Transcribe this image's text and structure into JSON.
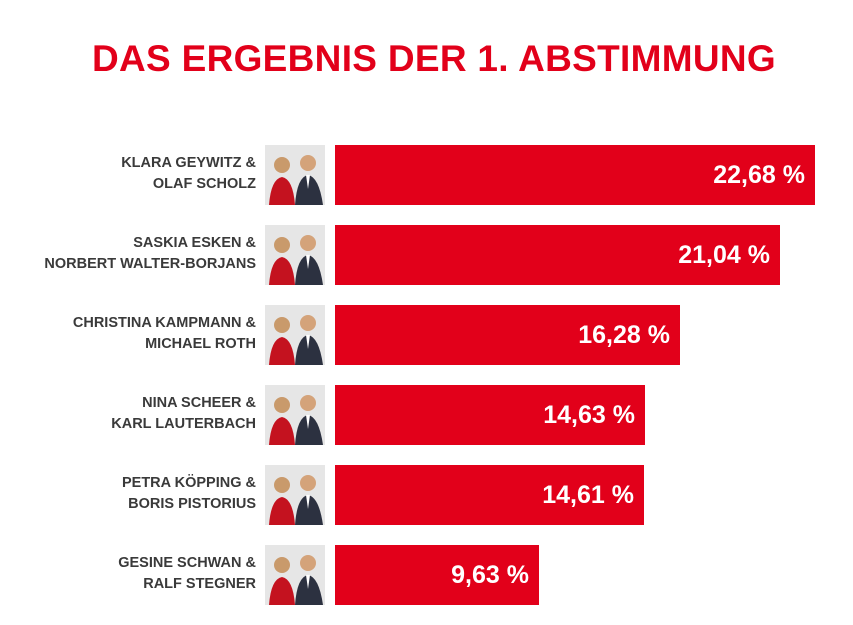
{
  "title": "DAS ERGEBNIS DER 1. ABSTIMMUNG",
  "colors": {
    "accent": "#e2001a",
    "label": "#3a3a3a"
  },
  "chart_data": {
    "type": "bar",
    "orientation": "horizontal",
    "categories": [
      [
        "KLARA GEYWITZ &",
        "OLAF SCHOLZ"
      ],
      [
        "SASKIA ESKEN &",
        "NORBERT WALTER-BORJANS"
      ],
      [
        "CHRISTINA KAMPMANN &",
        "MICHAEL ROTH"
      ],
      [
        "NINA SCHEER &",
        "KARL LAUTERBACH"
      ],
      [
        "PETRA KÖPPING &",
        "BORIS PISTORIUS"
      ],
      [
        "GESINE SCHWAN &",
        "RALF STEGNER"
      ]
    ],
    "values": [
      22.68,
      21.04,
      16.28,
      14.63,
      14.61,
      9.63
    ],
    "value_labels": [
      "22,68 %",
      "21,04 %",
      "16,28 %",
      "14,63 %",
      "14,61 %",
      "9,63 %"
    ],
    "unit": "%",
    "title": "DAS ERGEBNIS DER 1. ABSTIMMUNG",
    "grid": false,
    "legend": "none"
  }
}
